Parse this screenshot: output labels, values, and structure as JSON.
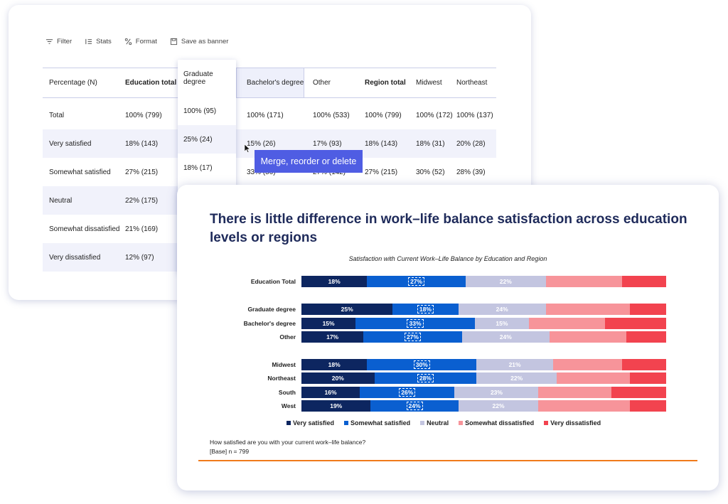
{
  "toolbar": {
    "filter": "Filter",
    "stats": "Stats",
    "format": "Format",
    "save_banner": "Save as banner"
  },
  "table": {
    "headers": [
      "Percentage (N)",
      "Education total",
      "Graduate degree",
      "Bachelor's degree",
      "Other",
      "Region total",
      "Midwest",
      "Northeast"
    ],
    "rows": [
      {
        "label": "Total",
        "education_total": "100% (799)",
        "graduate": "100% (95)",
        "bachelors": "100% (171)",
        "other": "100% (533)",
        "region_total": "100% (799)",
        "midwest": "100% (172)",
        "northeast": "100% (137)"
      },
      {
        "label": "Very satisfied",
        "education_total": "18% (143)",
        "graduate": "25% (24)",
        "bachelors": "15% (26)",
        "other": "17% (93)",
        "region_total": "18% (143)",
        "midwest": "18% (31)",
        "northeast": "20% (28)"
      },
      {
        "label": "Somewhat satisfied",
        "education_total": "27% (215)",
        "graduate": "18% (17)",
        "bachelors": "33% (56)",
        "other": "27% (142)",
        "region_total": "27% (215)",
        "midwest": "30% (52)",
        "northeast": "28% (39)"
      },
      {
        "label": "Neutral",
        "education_total": "22% (175)"
      },
      {
        "label": "Somewhat dissatisfied",
        "education_total": "21% (169)"
      },
      {
        "label": "Very dissatisfied",
        "education_total": "12% (97)"
      }
    ]
  },
  "tooltip": "Merge, reorder or delete",
  "chart_title": "There is little difference in work–life balance satisfaction across education levels or regions",
  "chart_data": {
    "type": "bar",
    "orientation": "horizontal-stacked-100",
    "title": "Satisfaction with Current Work–Life Balance by Education and Region",
    "categories": [
      "Education Total",
      "Graduate degree",
      "Bachelor's degree",
      "Other",
      "Midwest",
      "Northeast",
      "South",
      "West"
    ],
    "series": [
      {
        "name": "Very satisfied",
        "color": "#0d2660",
        "values": [
          18,
          25,
          15,
          17,
          18,
          20,
          16,
          19
        ]
      },
      {
        "name": "Somewhat satisfied",
        "color": "#0a5fd0",
        "values": [
          27,
          18,
          33,
          27,
          30,
          28,
          26,
          24
        ]
      },
      {
        "name": "Neutral",
        "color": "#c3c5e0",
        "values": [
          22,
          24,
          15,
          24,
          21,
          22,
          23,
          22
        ]
      },
      {
        "name": "Somewhat dissatisfied",
        "color": "#f7949a",
        "values": [
          21,
          23,
          21,
          21,
          19,
          20,
          20,
          25
        ]
      },
      {
        "name": "Very dissatisfied",
        "color": "#f2434f",
        "values": [
          12,
          10,
          17,
          11,
          12,
          10,
          15,
          10
        ]
      }
    ],
    "labeled_series": [
      0,
      1,
      2
    ],
    "xlim": [
      0,
      100
    ]
  },
  "question": "How satisfied are you with your current work–life balance?",
  "base": "[Base] n = 799"
}
